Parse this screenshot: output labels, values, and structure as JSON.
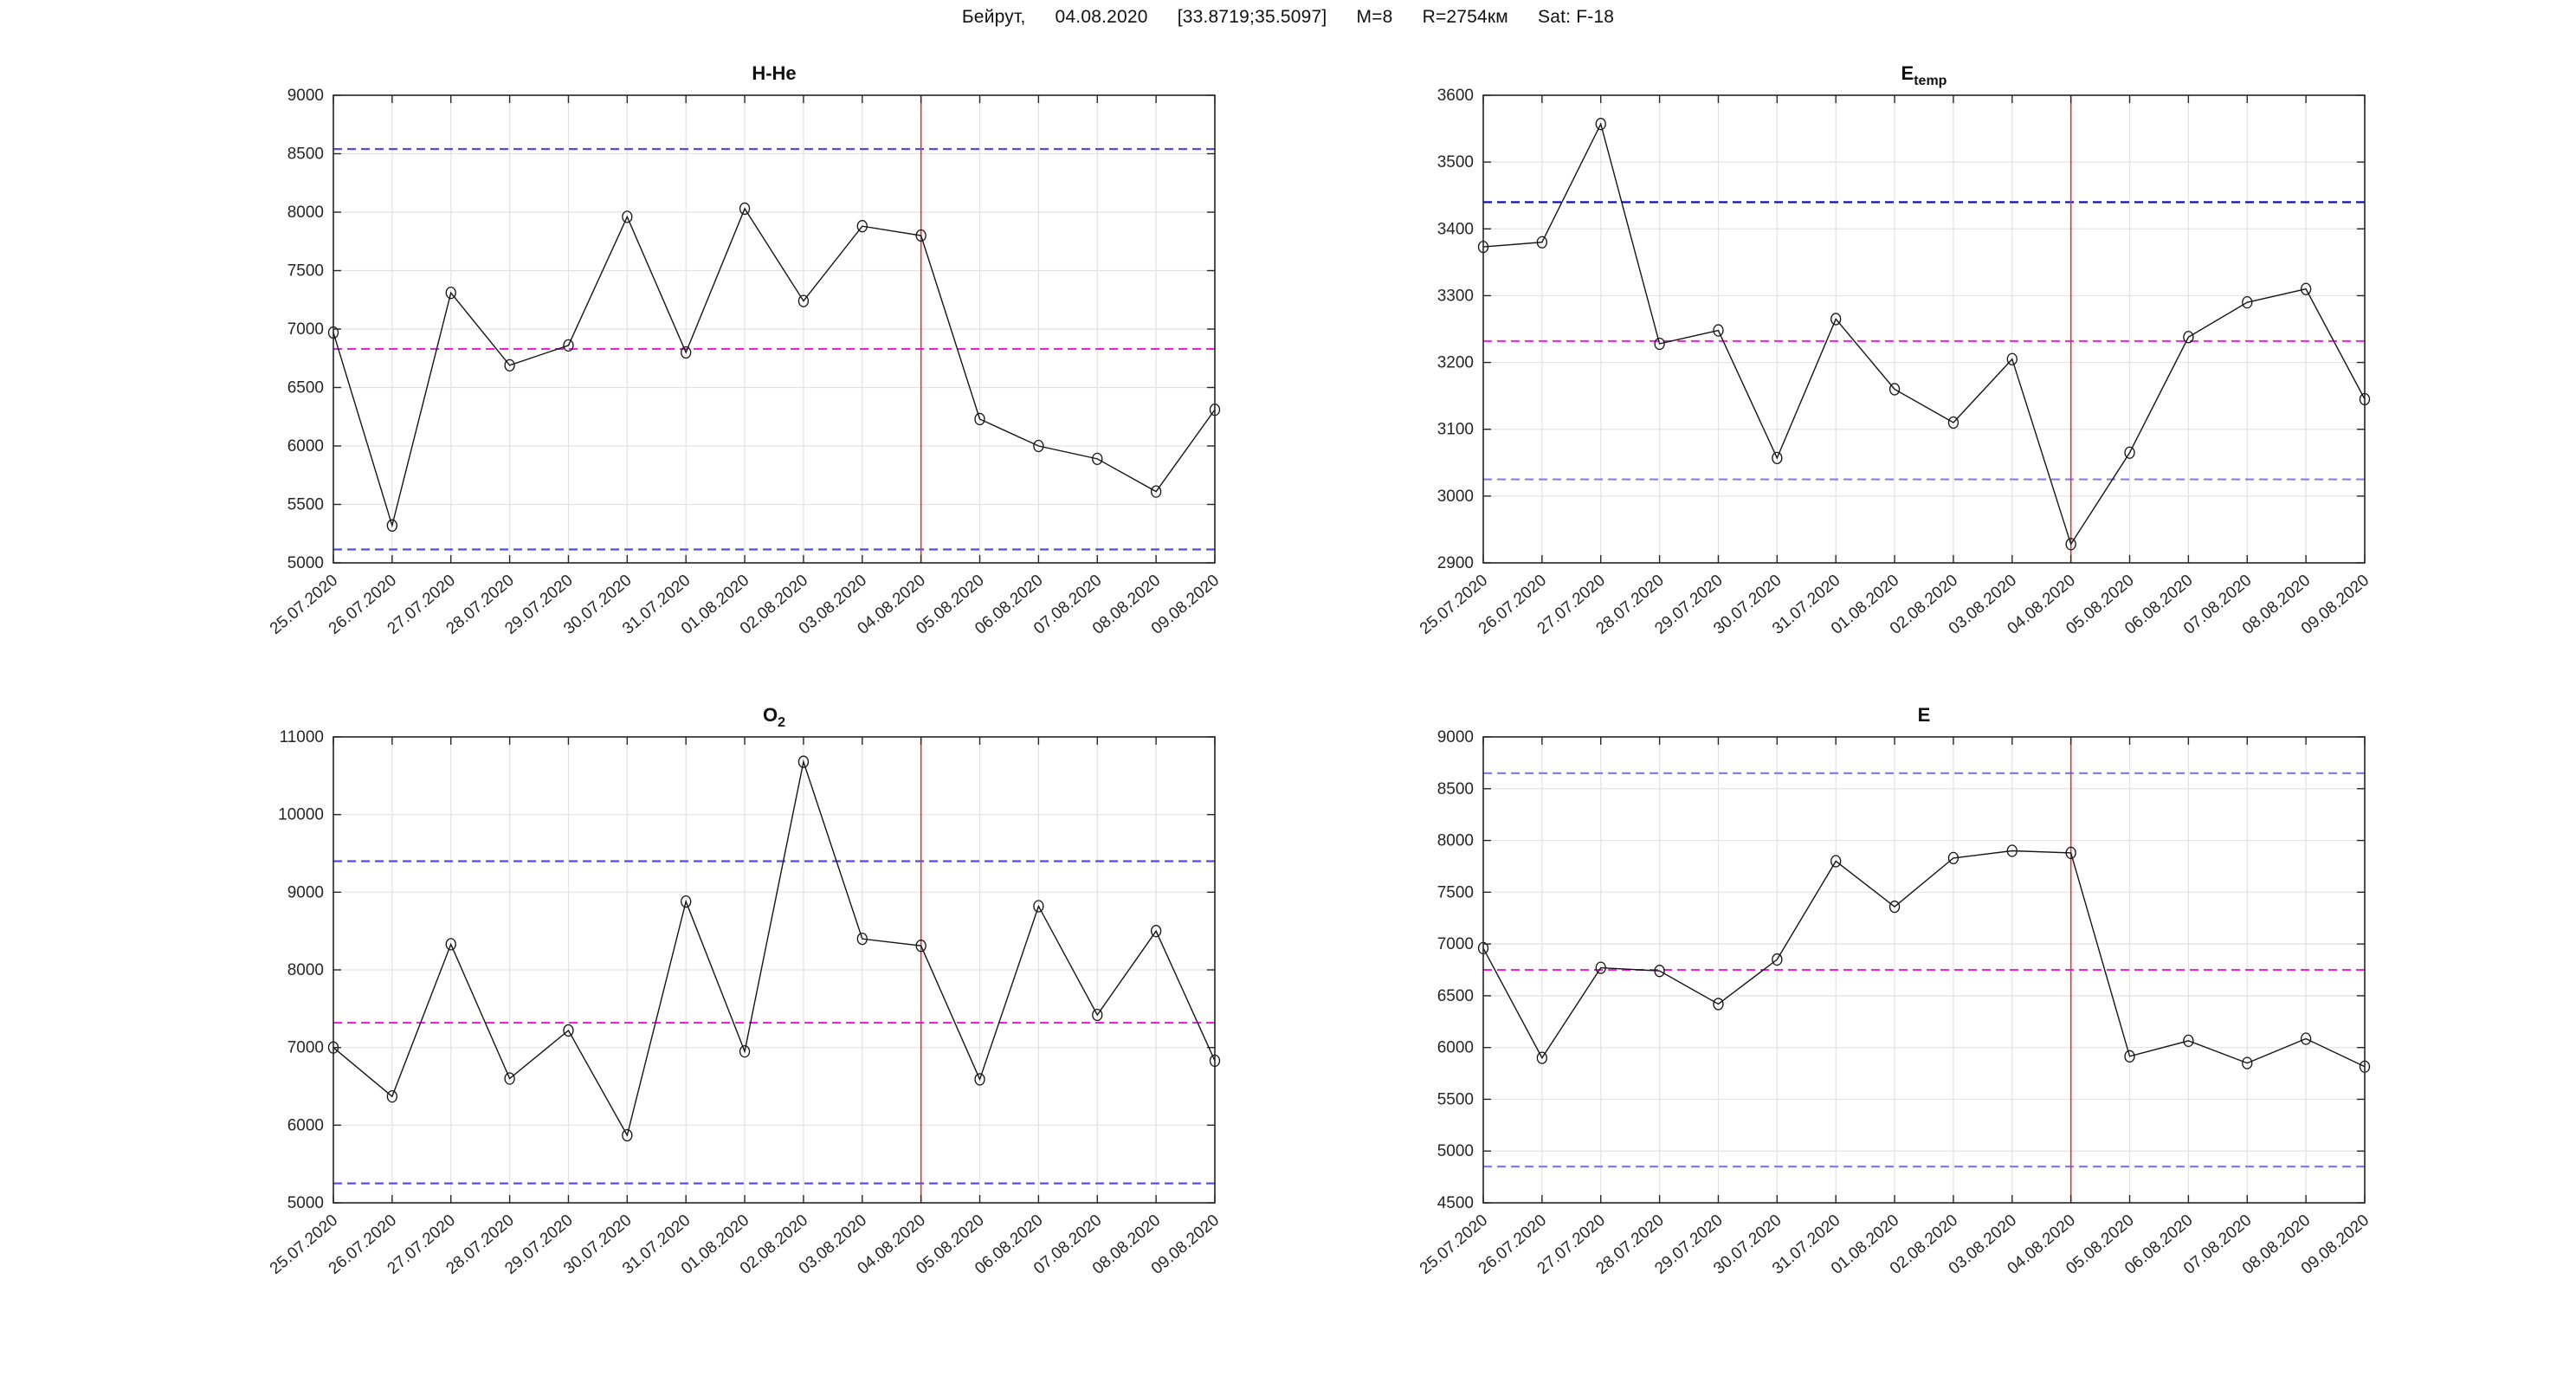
{
  "header": {
    "location": "Бейрут,",
    "date": "04.08.2020",
    "coordinates": "[33.8719;35.5097]",
    "magnitude": "M=8",
    "radius": "R=2754км",
    "satellite": "Sat: F-18"
  },
  "style": {
    "background": "#ffffff",
    "grid_color": "#e2e2e2",
    "axis_color": "#262626",
    "label_color": "#262626",
    "series_color": "#151515",
    "title_color": "#111111",
    "mean_line_color": "#ef1fdf",
    "event_line_color": "#d43c3c"
  },
  "chart_data": [
    {
      "type": "line",
      "title": "H-He",
      "title_sub": "",
      "xlabel": "",
      "ylabel": "",
      "grid": true,
      "categories": [
        "25.07.2020",
        "26.07.2020",
        "27.07.2020",
        "28.07.2020",
        "29.07.2020",
        "30.07.2020",
        "31.07.2020",
        "01.08.2020",
        "02.08.2020",
        "03.08.2020",
        "04.08.2020",
        "05.08.2020",
        "06.08.2020",
        "07.08.2020",
        "08.08.2020",
        "09.08.2020"
      ],
      "values": [
        6970,
        5320,
        7310,
        6690,
        6860,
        7960,
        6800,
        8030,
        7240,
        7880,
        7800,
        6230,
        6000,
        5890,
        5610,
        6310
      ],
      "ylim": [
        5000,
        9000
      ],
      "ytick_step": 500,
      "upper_bound": {
        "value": 8540,
        "color": "#4d4de0"
      },
      "lower_bound": {
        "value": 5115,
        "color": "#4d4de0"
      },
      "mean_line": {
        "value": 6830,
        "color": "#ef1fdf"
      },
      "event_line": {
        "category": "04.08.2020",
        "index": 10,
        "color": "#d43c3c"
      }
    },
    {
      "type": "line",
      "title": "E",
      "title_sub": "temp",
      "xlabel": "",
      "ylabel": "",
      "grid": true,
      "categories": [
        "25.07.2020",
        "26.07.2020",
        "27.07.2020",
        "28.07.2020",
        "29.07.2020",
        "30.07.2020",
        "31.07.2020",
        "01.08.2020",
        "02.08.2020",
        "03.08.2020",
        "04.08.2020",
        "05.08.2020",
        "06.08.2020",
        "07.08.2020",
        "08.08.2020",
        "09.08.2020"
      ],
      "values": [
        3373,
        3380,
        3557,
        3228,
        3248,
        3057,
        3265,
        3160,
        3110,
        3205,
        2928,
        3065,
        3238,
        3290,
        3310,
        3145
      ],
      "ylim": [
        2900,
        3600
      ],
      "ytick_step": 100,
      "upper_bound": {
        "value": 3440,
        "color": "#0000dd"
      },
      "lower_bound": {
        "value": 3025,
        "color": "#8080e8"
      },
      "mean_line": {
        "value": 3232,
        "color": "#ef1fdf"
      },
      "event_line": {
        "category": "04.08.2020",
        "index": 10,
        "color": "#d43c3c"
      }
    },
    {
      "type": "line",
      "title": "O",
      "title_sub": "2",
      "xlabel": "",
      "ylabel": "",
      "grid": true,
      "categories": [
        "25.07.2020",
        "26.07.2020",
        "27.07.2020",
        "28.07.2020",
        "29.07.2020",
        "30.07.2020",
        "31.07.2020",
        "01.08.2020",
        "02.08.2020",
        "03.08.2020",
        "04.08.2020",
        "05.08.2020",
        "06.08.2020",
        "07.08.2020",
        "08.08.2020",
        "09.08.2020"
      ],
      "values": [
        7000,
        6370,
        8330,
        6600,
        7220,
        5870,
        8880,
        6950,
        10680,
        8400,
        8310,
        6590,
        8820,
        7420,
        8500,
        6830
      ],
      "ylim": [
        5000,
        11000
      ],
      "ytick_step": 1000,
      "upper_bound": {
        "value": 9400,
        "color": "#4d4de0"
      },
      "lower_bound": {
        "value": 5250,
        "color": "#4d4de0"
      },
      "mean_line": {
        "value": 7320,
        "color": "#ef1fdf"
      },
      "event_line": {
        "category": "04.08.2020",
        "index": 10,
        "color": "#d43c3c"
      }
    },
    {
      "type": "line",
      "title": "E",
      "title_sub": "",
      "xlabel": "",
      "ylabel": "",
      "grid": true,
      "categories": [
        "25.07.2020",
        "26.07.2020",
        "27.07.2020",
        "28.07.2020",
        "29.07.2020",
        "30.07.2020",
        "31.07.2020",
        "01.08.2020",
        "02.08.2020",
        "03.08.2020",
        "04.08.2020",
        "05.08.2020",
        "06.08.2020",
        "07.08.2020",
        "08.08.2020",
        "09.08.2020"
      ],
      "values": [
        6960,
        5900,
        6770,
        6740,
        6420,
        6850,
        7800,
        7360,
        7830,
        7900,
        7880,
        5915,
        6065,
        5850,
        6085,
        5815
      ],
      "ylim": [
        4500,
        9000
      ],
      "ytick_step": 500,
      "upper_bound": {
        "value": 8650,
        "color": "#8080e8"
      },
      "lower_bound": {
        "value": 4850,
        "color": "#8080e8"
      },
      "mean_line": {
        "value": 6750,
        "color": "#ef1fdf"
      },
      "event_line": {
        "category": "04.08.2020",
        "index": 10,
        "color": "#d43c3c"
      }
    }
  ]
}
